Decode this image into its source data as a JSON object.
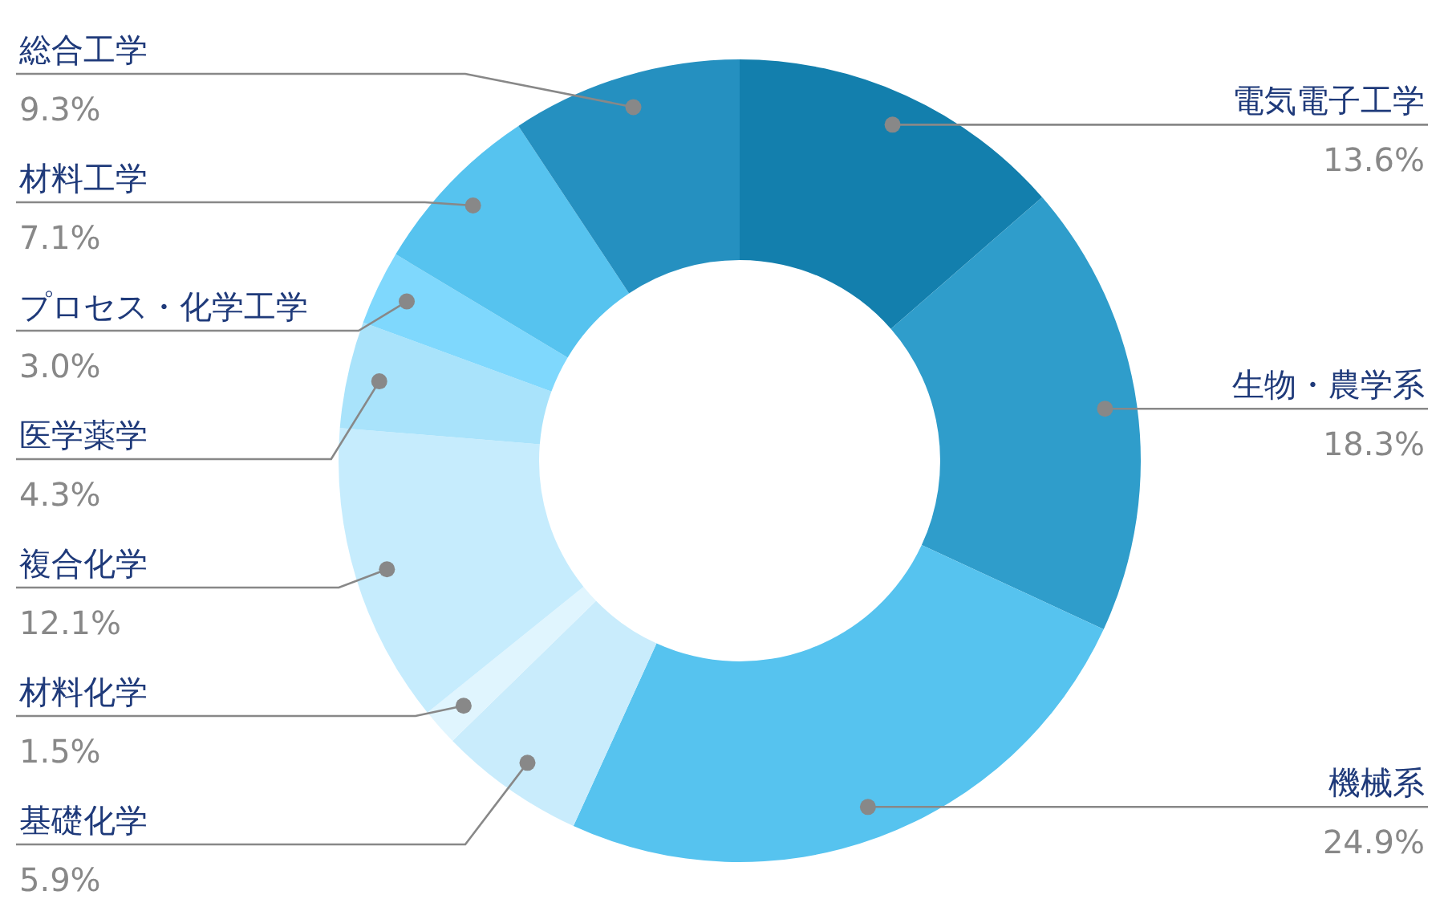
{
  "chart_data": {
    "type": "donut",
    "categories": [
      "電気電子工学",
      "生物・農学系",
      "機械系",
      "基礎化学",
      "材料化学",
      "複合化学",
      "医学薬学",
      "プロセス・化学工学",
      "材料工学",
      "総合工学"
    ],
    "values": [
      13.6,
      18.3,
      24.9,
      5.9,
      1.5,
      12.1,
      4.3,
      3.0,
      7.1,
      9.3
    ],
    "value_labels": [
      "13.6%",
      "18.3%",
      "24.9%",
      "5.9%",
      "1.5%",
      "12.1%",
      "4.3%",
      "3.0%",
      "7.1%",
      "9.3%"
    ],
    "colors": [
      "#137fad",
      "#2f9dcb",
      "#56c3ef",
      "#c9ecfc",
      "#e0f5fe",
      "#c6ecfd",
      "#a9e3fb",
      "#7fd8fd",
      "#56c3ef",
      "#2590c0"
    ]
  }
}
